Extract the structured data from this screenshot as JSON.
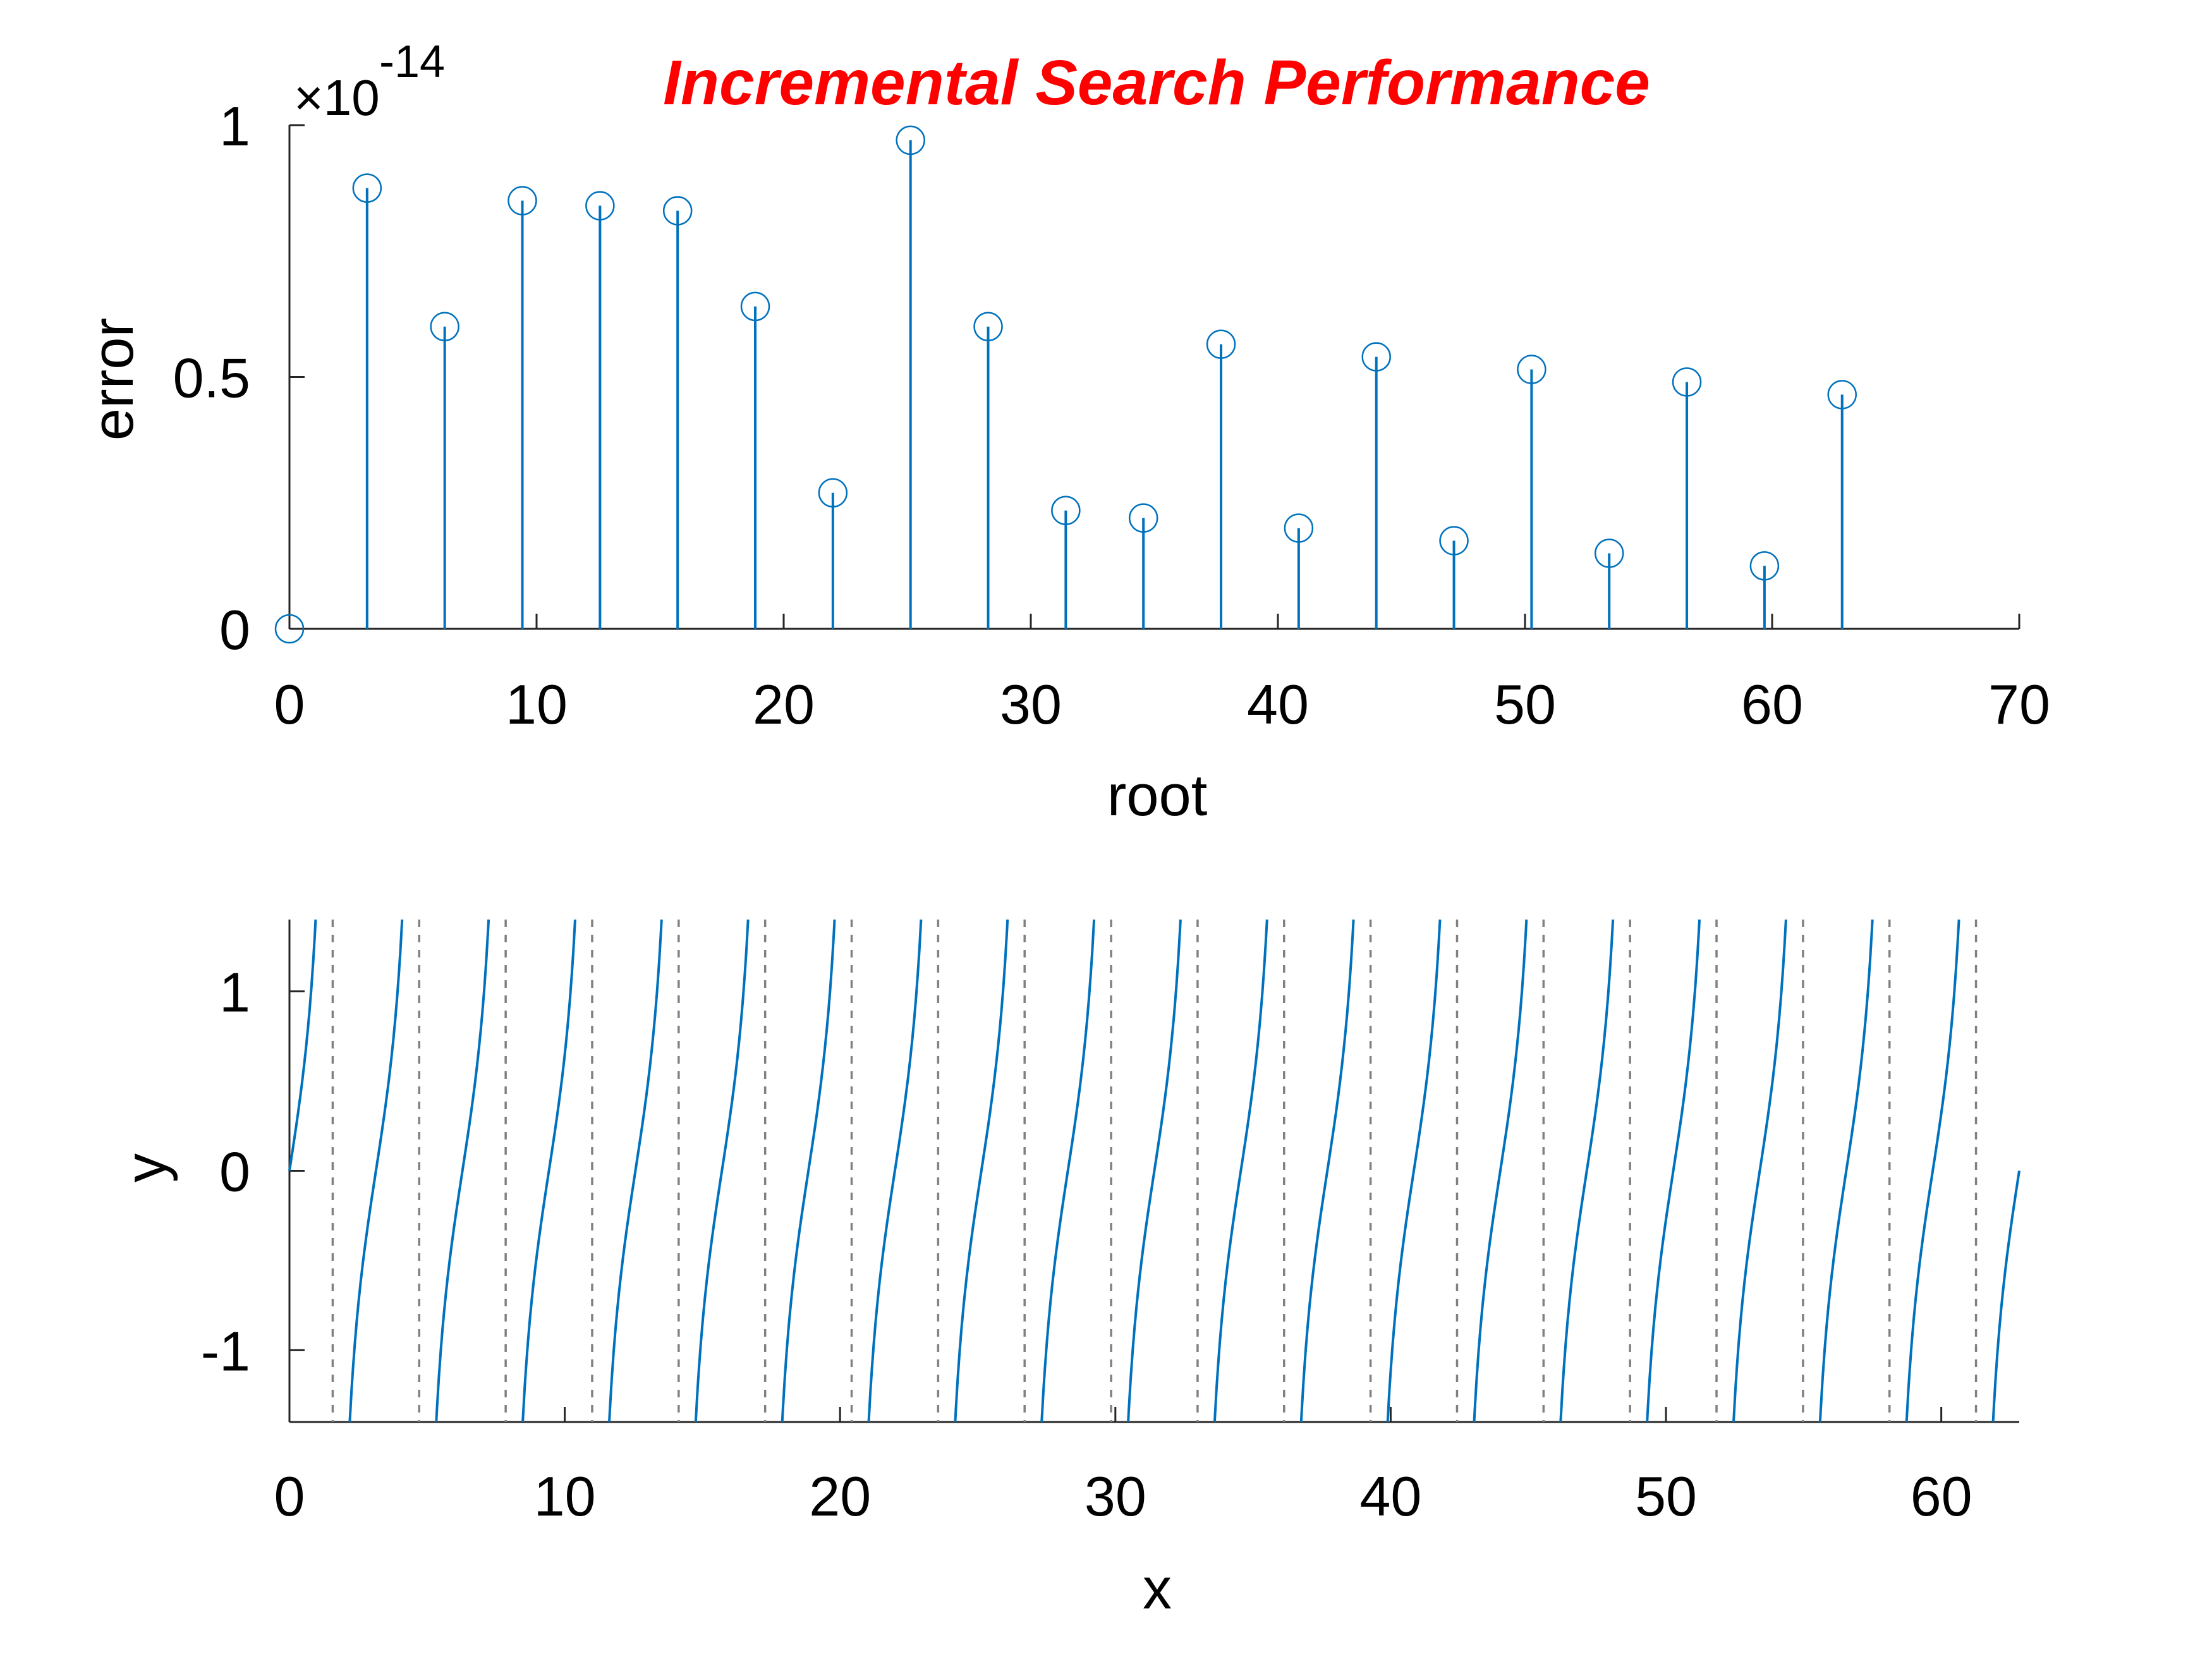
{
  "chart_data": [
    {
      "type": "stem",
      "title": "Incremental Search Performance",
      "xlabel": "root",
      "ylabel": "error",
      "y_exponent_label": "×10",
      "y_exponent_power": "-14",
      "xlim": [
        0,
        70
      ],
      "ylim": [
        0,
        1
      ],
      "xticks": [
        "0",
        "10",
        "20",
        "30",
        "40",
        "50",
        "60",
        "70"
      ],
      "yticks": [
        "0",
        "0.5",
        "1"
      ],
      "x": [
        0,
        3.1416,
        6.2832,
        9.4248,
        12.5664,
        15.708,
        18.8496,
        21.9911,
        25.1327,
        28.2743,
        31.4159,
        34.5575,
        37.6991,
        40.8407,
        43.9823,
        47.1239,
        50.2655,
        53.4071,
        56.5487,
        59.6903,
        62.8319
      ],
      "values": [
        0,
        0.875,
        0.6,
        0.85,
        0.84,
        0.83,
        0.64,
        0.27,
        0.97,
        0.6,
        0.235,
        0.22,
        0.565,
        0.2,
        0.54,
        0.175,
        0.515,
        0.15,
        0.49,
        0.125,
        0.465
      ],
      "values_scale": "1e-14",
      "color": "#0072BD",
      "title_color": "#FF0000"
    },
    {
      "type": "line",
      "xlabel": "x",
      "ylabel": "y",
      "xlim": [
        0,
        62.8319
      ],
      "ylim": [
        -1.4,
        1.4
      ],
      "xticks": [
        "0",
        "10",
        "20",
        "30",
        "40",
        "50",
        "60"
      ],
      "yticks": [
        "-1",
        "0",
        "1"
      ],
      "function": "tan",
      "asymptotes": [
        1.5708,
        4.7124,
        7.854,
        10.9956,
        14.1372,
        17.2788,
        20.4204,
        23.5619,
        26.7035,
        29.8451,
        32.9867,
        36.1283,
        39.2699,
        42.4115,
        45.5531,
        48.6947,
        51.8363,
        54.9779,
        58.1195,
        61.2611
      ],
      "color": "#0072BD",
      "asymptote_color": "#808080"
    }
  ]
}
